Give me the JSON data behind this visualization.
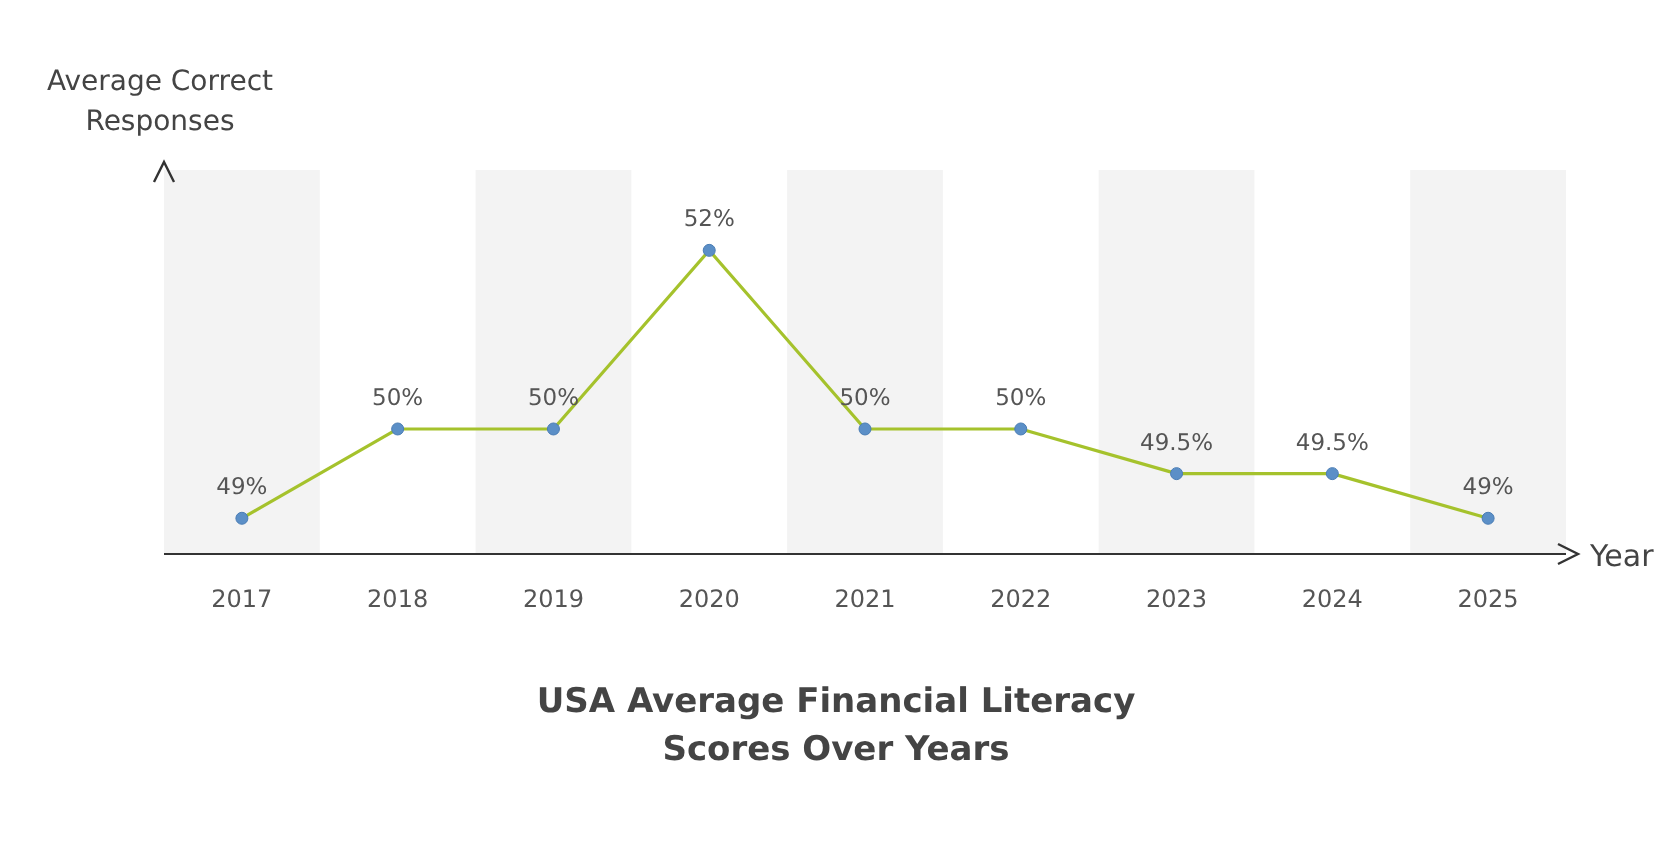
{
  "chart_data": {
    "type": "line",
    "title": "USA Average Financial Literacy\nScores Over Years",
    "xlabel": "Year",
    "ylabel": "Average Correct\nResponses",
    "categories": [
      "2017",
      "2018",
      "2019",
      "2020",
      "2021",
      "2022",
      "2023",
      "2024",
      "2025"
    ],
    "series": [
      {
        "color": "#a5c22c",
        "values": [
          49,
          50,
          50,
          52,
          50,
          50,
          49.5,
          49.5,
          49
        ],
        "value_labels": [
          "49%",
          "50%",
          "50%",
          "52%",
          "50%",
          "50%",
          "49.5%",
          "49.5%",
          "49%"
        ]
      }
    ],
    "marker": "circle"
  }
}
